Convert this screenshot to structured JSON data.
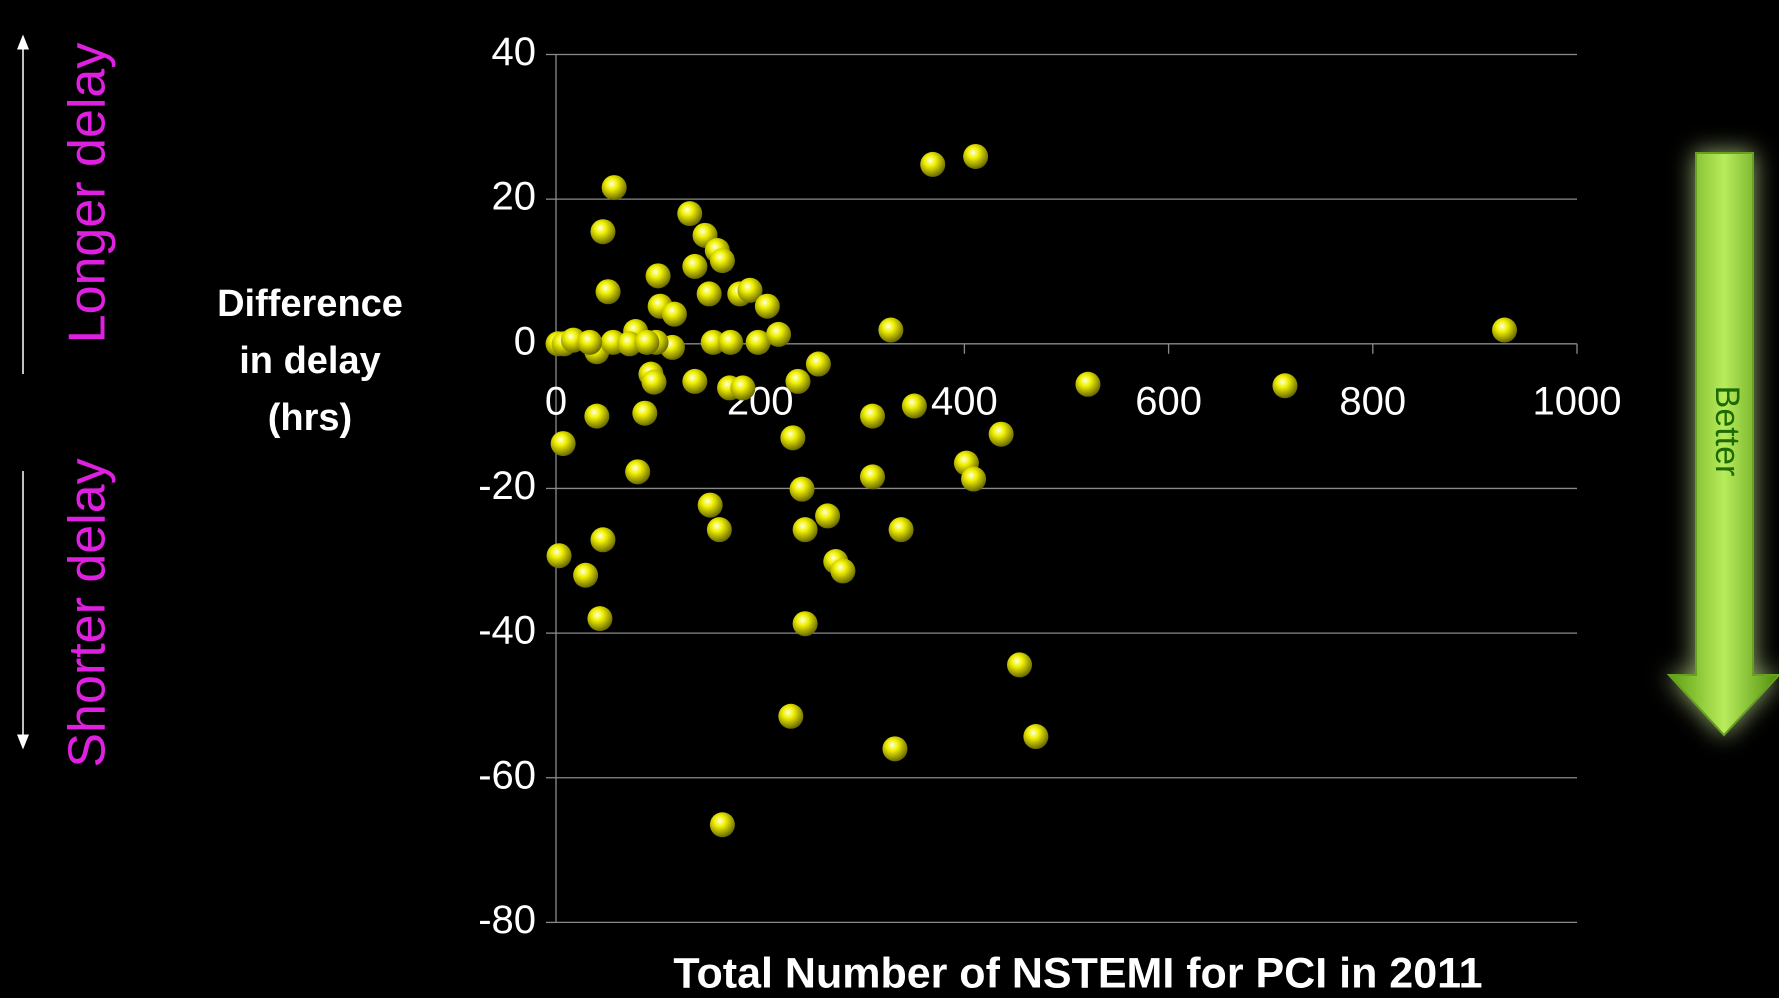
{
  "chart_data": {
    "type": "scatter",
    "x_label": "Total Number of NSTEMI for PCI in 2011",
    "y_label": [
      "Difference",
      "in delay",
      "(hrs)"
    ],
    "side_labels": {
      "up": "Longer delay",
      "down": "Shorter delay",
      "better": "Better"
    },
    "xlim": [
      0,
      1000
    ],
    "xticks": [
      0,
      200,
      400,
      600,
      800,
      1000
    ],
    "ylim": [
      -80,
      40
    ],
    "yticks": [
      -80,
      -60,
      -40,
      -20,
      0,
      20,
      40
    ],
    "grid": true,
    "series": [
      {
        "color": "#f0f000",
        "x": [
          2,
          8,
          17,
          7,
          3,
          29,
          46,
          43,
          40,
          40,
          46,
          51,
          57,
          56,
          33,
          78,
          72,
          80,
          87,
          93,
          96,
          100,
          102,
          116,
          114,
          98,
          89,
          131,
          136,
          136,
          146,
          150,
          151,
          158,
          163,
          154,
          160,
          163,
          171,
          170,
          183,
          180,
          190,
          198,
          207,
          218,
          232,
          237,
          230,
          241,
          244,
          244,
          257,
          266,
          274,
          281,
          310,
          310,
          328,
          332,
          338,
          351,
          369,
          402,
          409,
          411,
          436,
          454,
          470,
          521,
          714,
          929
        ],
        "values": [
          0,
          0,
          0.5,
          -13.8,
          -29.3,
          -32,
          -27.1,
          -38,
          -10,
          -1.1,
          15.5,
          7.2,
          21.6,
          0.2,
          0.2,
          1.7,
          0,
          -17.7,
          -9.6,
          -4.2,
          -5.3,
          9.4,
          5.2,
          4.1,
          -0.5,
          0.2,
          0.2,
          18,
          10.7,
          -5.2,
          15,
          6.9,
          -22.3,
          12.9,
          11.5,
          0.2,
          -25.7,
          -66.5,
          0.2,
          -6.1,
          -6.1,
          6.9,
          7.4,
          0.2,
          5.2,
          1.3,
          -13,
          -5.2,
          -51.5,
          -20.1,
          -25.7,
          -38.7,
          -2.8,
          -23.8,
          -30.1,
          -31.4,
          -10,
          -18.4,
          1.9,
          -56,
          -25.7,
          -8.6,
          24.8,
          -16.5,
          -18.7,
          25.9,
          -12.5,
          -44.4,
          -54.3,
          -5.6,
          -5.8,
          1.9
        ]
      }
    ]
  }
}
